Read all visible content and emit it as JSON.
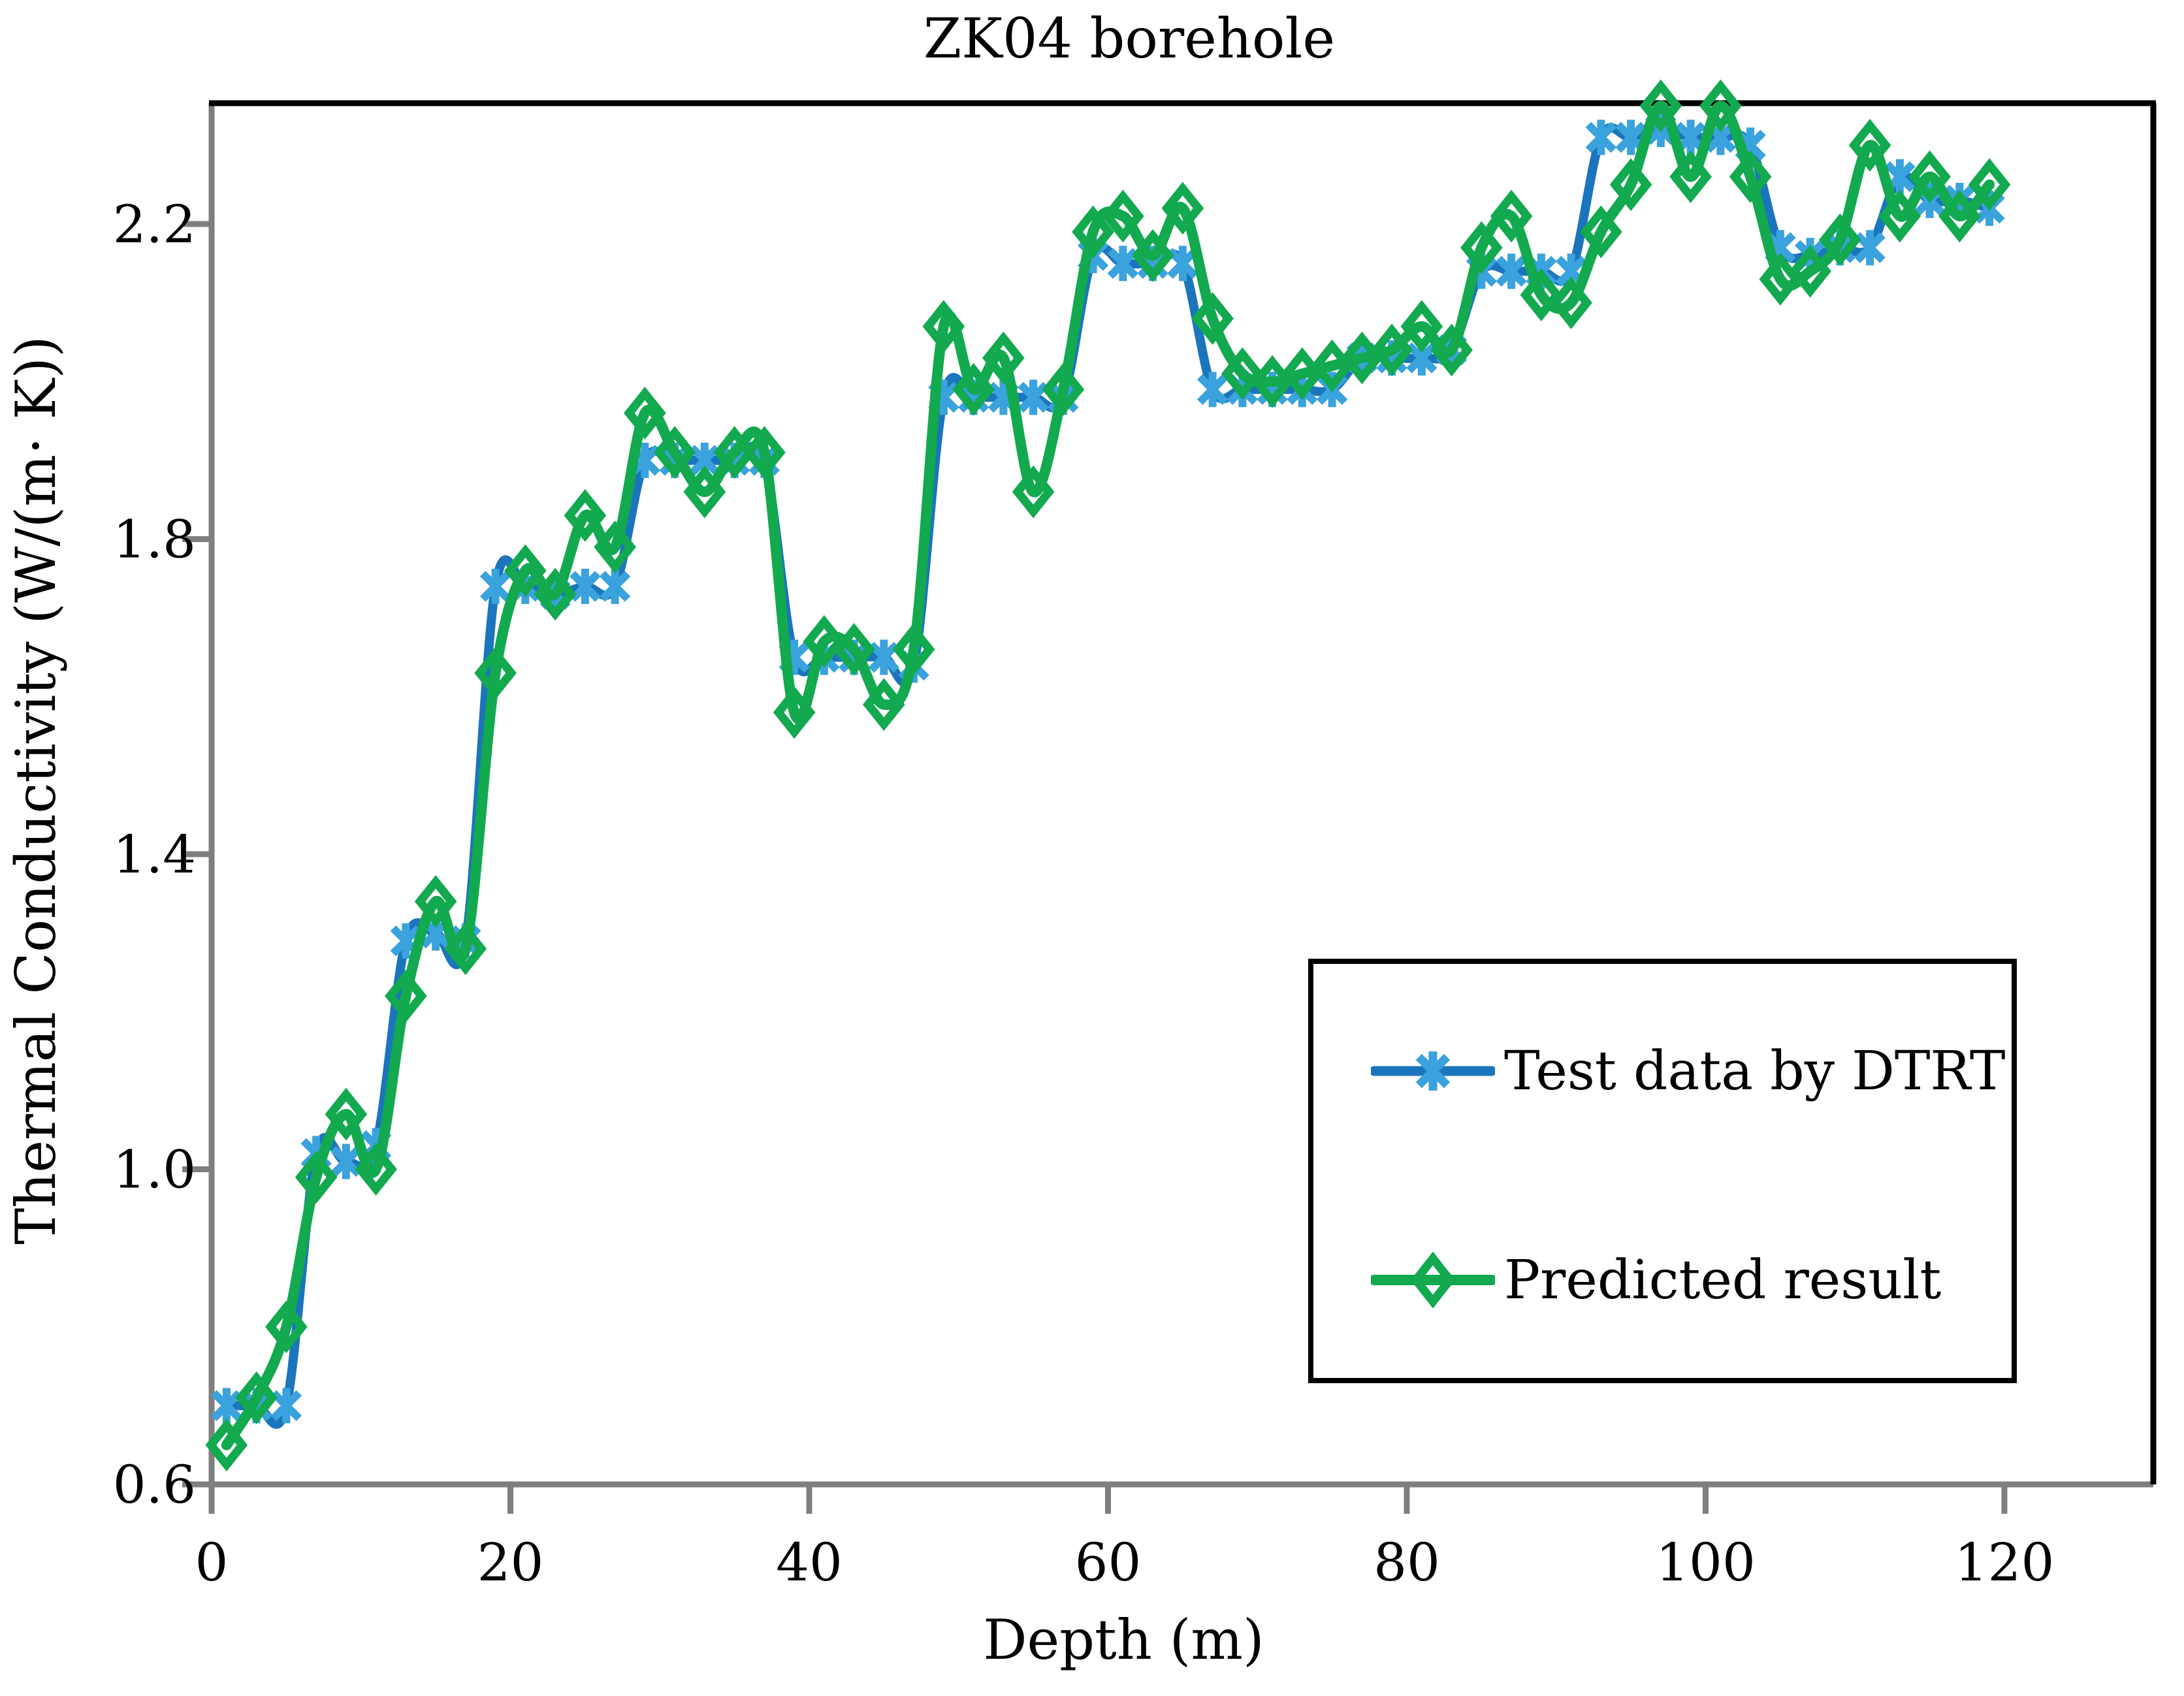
{
  "title": "ZK04 borehole",
  "x_axis": {
    "label": "Depth (m)",
    "ticks": [
      0,
      20,
      40,
      60,
      80,
      100,
      120
    ]
  },
  "y_axis": {
    "label": "Thermal Conductivity (W/(m· K))",
    "ticks": [
      "0.6",
      "1.0",
      "1.4",
      "1.8",
      "2.2"
    ]
  },
  "legend": {
    "items": [
      {
        "label": "Test data by DTRT",
        "marker": "asterisk-icon"
      },
      {
        "label": "Predicted result",
        "marker": "diamond-icon"
      }
    ]
  },
  "colors": {
    "blue_line": "#1B75BC",
    "blue_marker": "#3AA2DC",
    "green_line": "#12A94F",
    "green_marker": "#12A94F",
    "axis_gray": "#7F7F7F",
    "border_black": "#000000",
    "text": "#000000"
  },
  "chart_data": {
    "type": "line",
    "title": "ZK04 borehole",
    "xlabel": "Depth (m)",
    "ylabel": "Thermal Conductivity (W/(m· K))",
    "xlim": [
      0,
      130
    ],
    "ylim": [
      0.6,
      2.36
    ],
    "x_ticks": [
      0,
      20,
      40,
      60,
      80,
      100,
      120
    ],
    "y_ticks": [
      0.6,
      1.0,
      1.4,
      1.8,
      2.2
    ],
    "grid": false,
    "legend_position": "lower-right-box",
    "x": [
      1,
      3,
      5,
      7,
      9,
      11,
      13,
      15,
      17,
      19,
      21,
      23,
      25,
      27,
      29,
      31,
      33,
      35,
      37,
      39,
      41,
      43,
      45,
      47,
      49,
      51,
      53,
      55,
      57,
      59,
      61,
      63,
      65,
      67,
      69,
      71,
      73,
      75,
      77,
      79,
      81,
      83,
      85,
      87,
      89,
      91,
      93,
      95,
      97,
      99,
      101,
      103,
      105,
      107,
      109,
      111,
      113,
      115,
      117,
      119
    ],
    "series": [
      {
        "name": "Test data by DTRT",
        "marker": "asterisk",
        "values": [
          0.7,
          0.7,
          0.7,
          1.02,
          1.01,
          1.03,
          1.29,
          1.3,
          1.29,
          1.74,
          1.74,
          1.73,
          1.74,
          1.74,
          1.9,
          1.9,
          1.9,
          1.9,
          1.9,
          1.65,
          1.65,
          1.65,
          1.65,
          1.64,
          1.98,
          1.98,
          1.98,
          1.98,
          1.98,
          2.16,
          2.15,
          2.15,
          2.15,
          1.99,
          1.99,
          1.99,
          1.99,
          1.99,
          2.03,
          2.03,
          2.03,
          2.04,
          2.14,
          2.14,
          2.14,
          2.14,
          2.31,
          2.31,
          2.32,
          2.31,
          2.31,
          2.3,
          2.17,
          2.16,
          2.17,
          2.17,
          2.26,
          2.23,
          2.23,
          2.22
        ]
      },
      {
        "name": "Predicted result",
        "marker": "diamond",
        "values": [
          0.65,
          0.71,
          0.8,
          0.99,
          1.07,
          1.0,
          1.22,
          1.34,
          1.28,
          1.63,
          1.76,
          1.73,
          1.83,
          1.79,
          1.96,
          1.91,
          1.86,
          1.91,
          1.91,
          1.58,
          1.67,
          1.66,
          1.59,
          1.66,
          2.07,
          1.99,
          2.03,
          1.86,
          1.99,
          2.19,
          2.21,
          2.16,
          2.22,
          2.08,
          2.01,
          2.0,
          2.01,
          2.02,
          2.03,
          2.04,
          2.07,
          2.04,
          2.17,
          2.21,
          2.11,
          2.1,
          2.19,
          2.25,
          2.35,
          2.26,
          2.35,
          2.26,
          2.13,
          2.14,
          2.18,
          2.3,
          2.21,
          2.26,
          2.21,
          2.25
        ]
      }
    ]
  }
}
